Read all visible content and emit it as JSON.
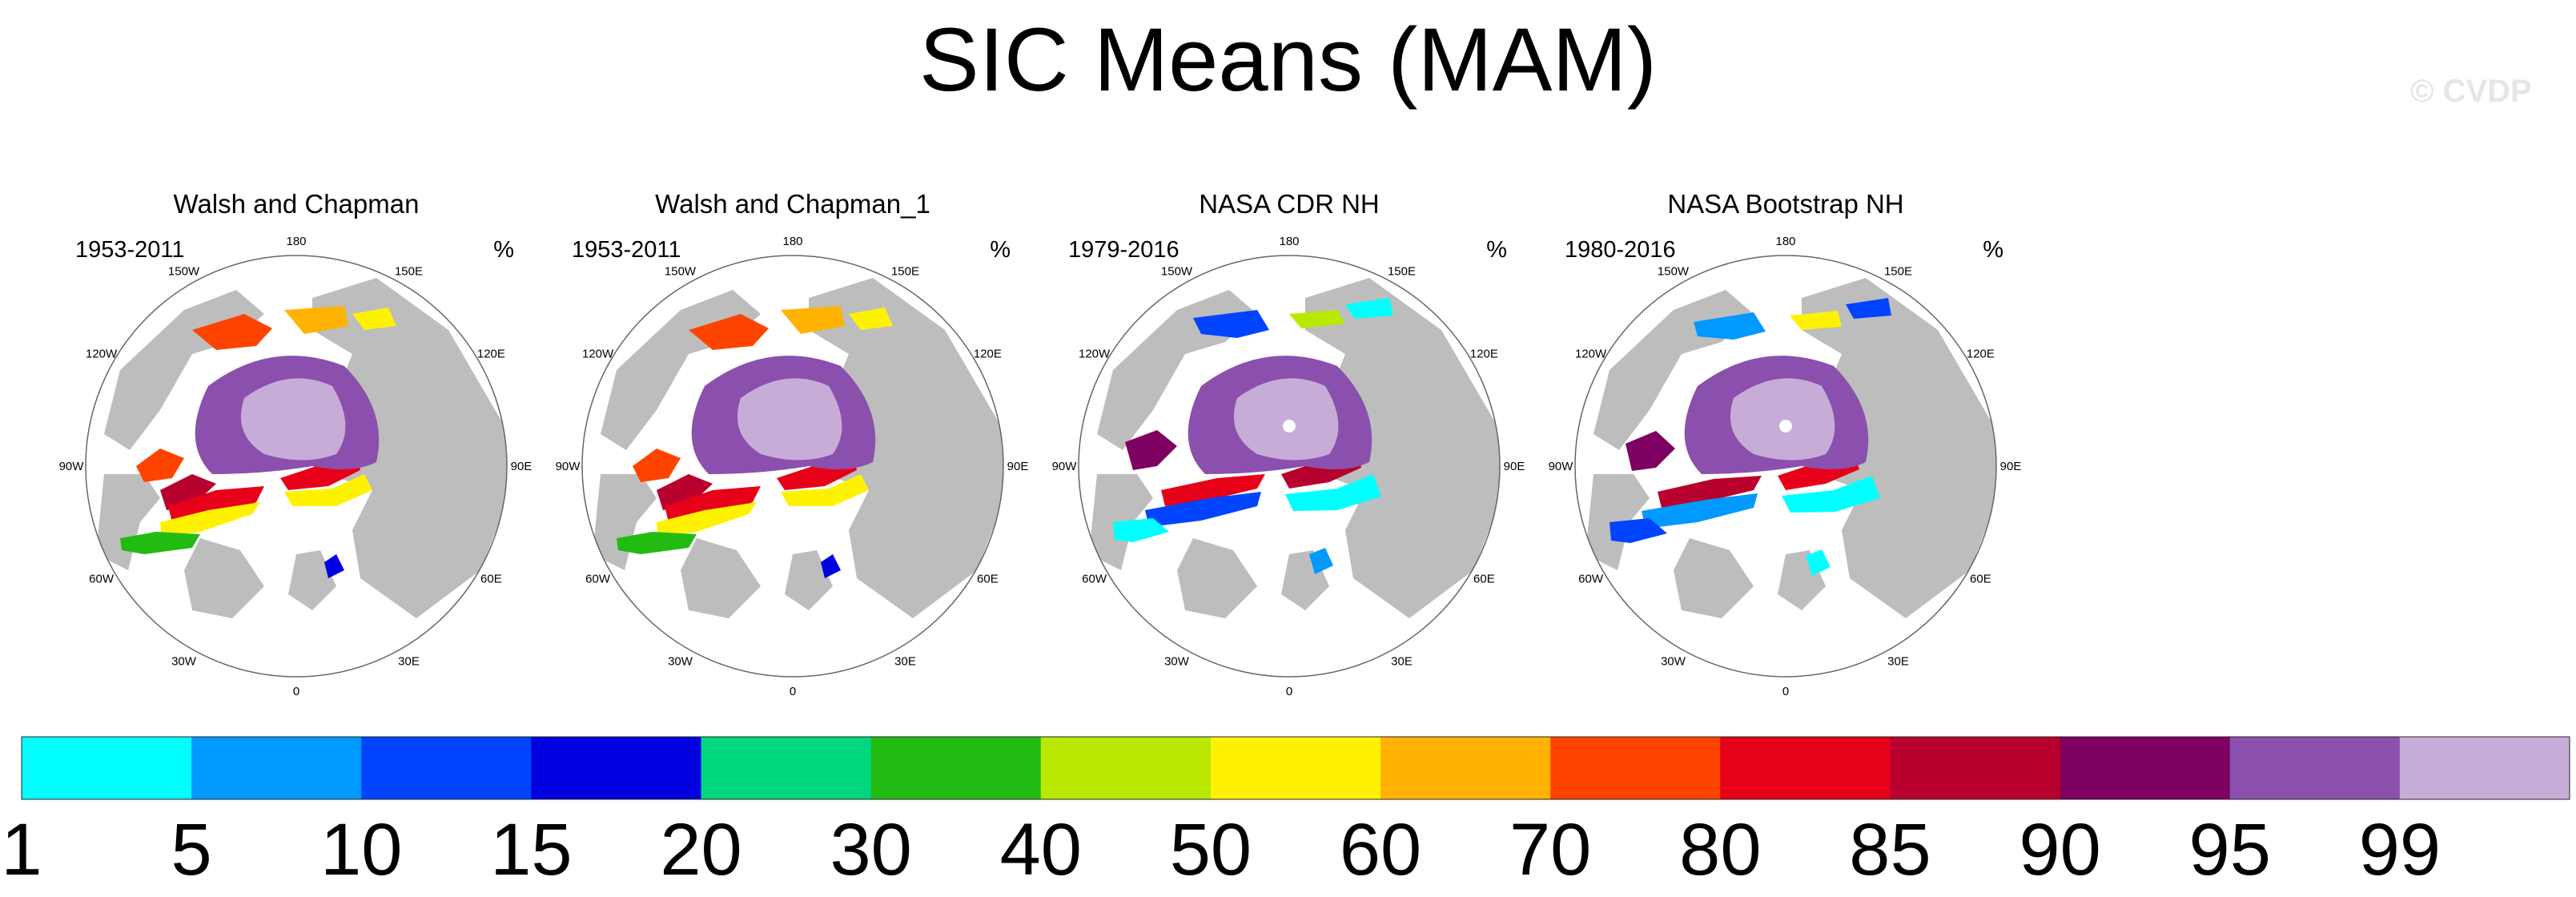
{
  "title": "SIC Means (MAM)",
  "watermark": "© CVDP",
  "panels": [
    {
      "title": "Walsh and Chapman",
      "years": "1953-2011",
      "unit": "%"
    },
    {
      "title": "Walsh and Chapman_1",
      "years": "1953-2011",
      "unit": "%"
    },
    {
      "title": "NASA CDR NH",
      "years": "1979-2016",
      "unit": "%"
    },
    {
      "title": "NASA Bootstrap NH",
      "years": "1980-2016",
      "unit": "%"
    }
  ],
  "longitude_labels": [
    "180",
    "150E",
    "120E",
    "90E",
    "60E",
    "30E",
    "0",
    "30W",
    "60W",
    "90W",
    "120W",
    "150W"
  ],
  "colorbar": {
    "ticks": [
      "1",
      "5",
      "10",
      "15",
      "20",
      "30",
      "40",
      "50",
      "60",
      "70",
      "80",
      "85",
      "90",
      "95",
      "99"
    ],
    "colors": [
      "#00ffff",
      "#0099ff",
      "#0044ff",
      "#0000e0",
      "#00d77f",
      "#22bb11",
      "#bbe800",
      "#fff200",
      "#ffb300",
      "#ff4400",
      "#e60018",
      "#b8002e",
      "#7e0060",
      "#8b50ad",
      "#c8acd8"
    ]
  },
  "colors": {
    "land": "#bdbdbd",
    "ocean": "#ffffff",
    "outline": "#666666"
  }
}
